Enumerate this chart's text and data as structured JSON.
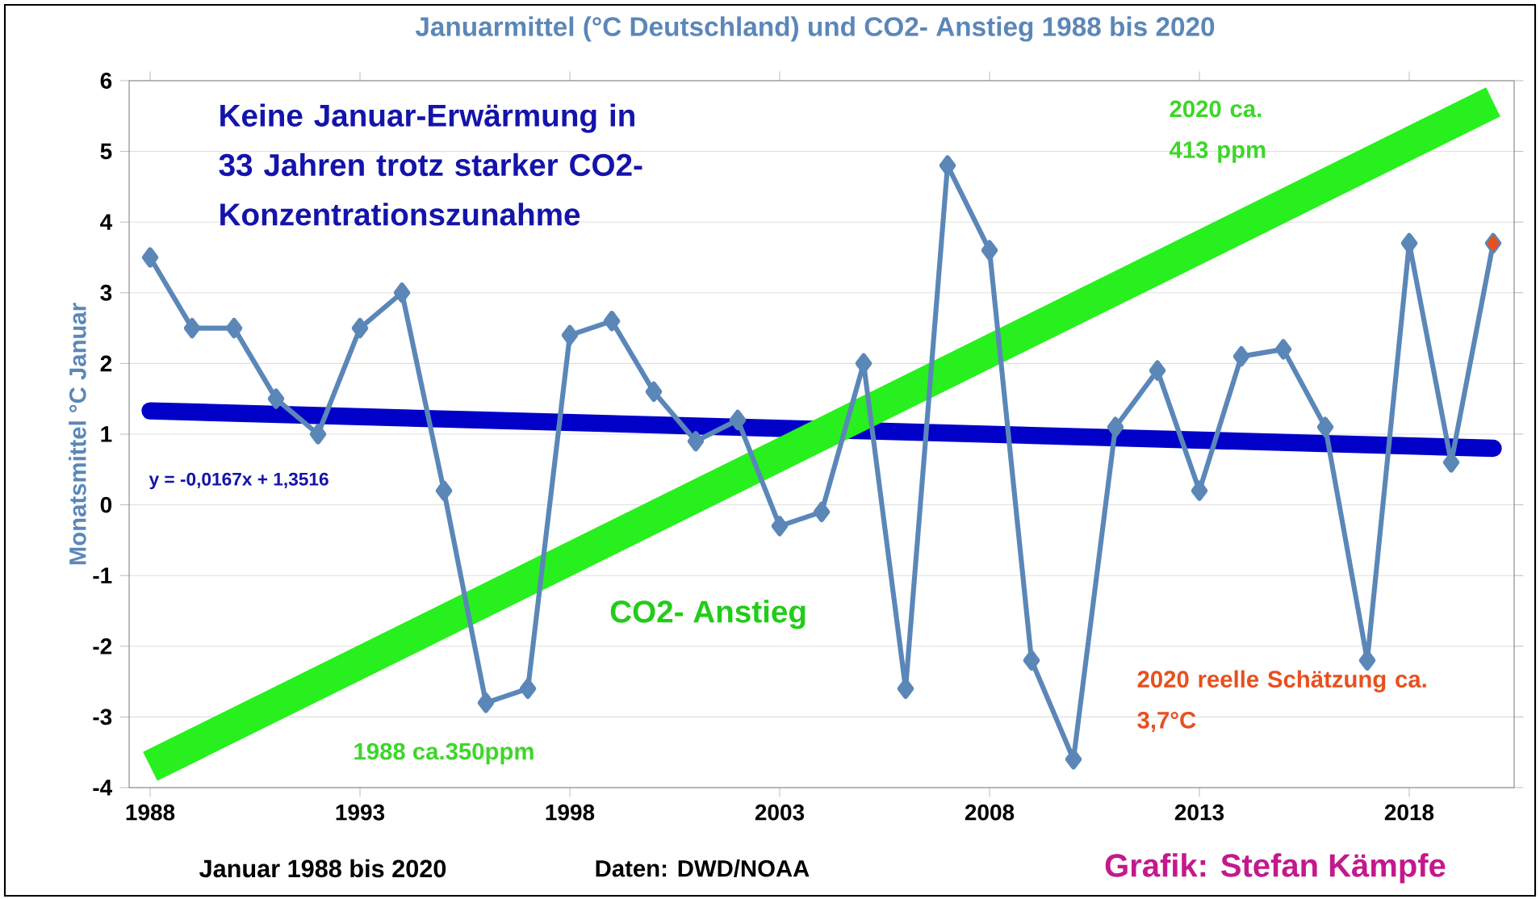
{
  "chart_data": {
    "type": "line",
    "title": "Januarmittel (°C Deutschland) und CO2- Anstieg 1988 bis 2020",
    "ylabel": "Monatsmittel °C Januar",
    "xlim": [
      1987.5,
      2020.5
    ],
    "xticks": [
      1988,
      1993,
      1998,
      2003,
      2008,
      2013,
      2018
    ],
    "ylim": [
      -4,
      6
    ],
    "yticks": [
      -4,
      -3,
      -2,
      -1,
      0,
      1,
      2,
      3,
      4,
      5,
      6
    ],
    "grid": "y",
    "series": [
      {
        "type": "line",
        "color": "#5b87b8",
        "marker": "diamond",
        "x": [
          1988,
          1989,
          1990,
          1991,
          1992,
          1993,
          1994,
          1995,
          1996,
          1997,
          1998,
          1999,
          2000,
          2001,
          2002,
          2003,
          2004,
          2005,
          2006,
          2007,
          2008,
          2009,
          2010,
          2011,
          2012,
          2013,
          2014,
          2015,
          2016,
          2017,
          2018,
          2019,
          2020
        ],
        "values": [
          3.5,
          2.5,
          2.5,
          1.5,
          1.0,
          2.5,
          3.0,
          0.2,
          -2.8,
          -2.6,
          2.4,
          2.6,
          1.6,
          0.9,
          1.2,
          -0.3,
          -0.1,
          2.0,
          -2.6,
          4.8,
          3.6,
          -2.2,
          -3.6,
          1.1,
          1.9,
          0.2,
          2.1,
          2.2,
          1.1,
          -2.2,
          3.7,
          0.6,
          3.7
        ]
      },
      {
        "type": "line",
        "color": "#0000c8",
        "marker": "none",
        "x": [
          1988,
          2020
        ],
        "values": [
          1.33,
          0.8
        ]
      },
      {
        "type": "scatter",
        "color": "#e8501e",
        "marker": "diamond",
        "x": [
          2020
        ],
        "values": [
          3.7
        ]
      },
      {
        "type": "line",
        "name": "CO2- Anstieg",
        "color": "#28f01e",
        "marker": "none",
        "x": [
          1988,
          2020
        ],
        "values": [
          -3.7,
          5.7
        ]
      }
    ],
    "annotations": [
      "Keine Januar-Erwärmung in 33 Jahren trotz starker CO2-Konzentrationszunahme",
      "y = -0,0167x + 1,3516",
      "1988 ca.350ppm",
      "2020 ca. 413 ppm",
      "2020 reelle Schätzung ca. 3,7°C",
      "Januar 1988 bis 2020",
      "Daten: DWD/NOAA",
      "Grafik: Stefan Kämpfe"
    ]
  }
}
